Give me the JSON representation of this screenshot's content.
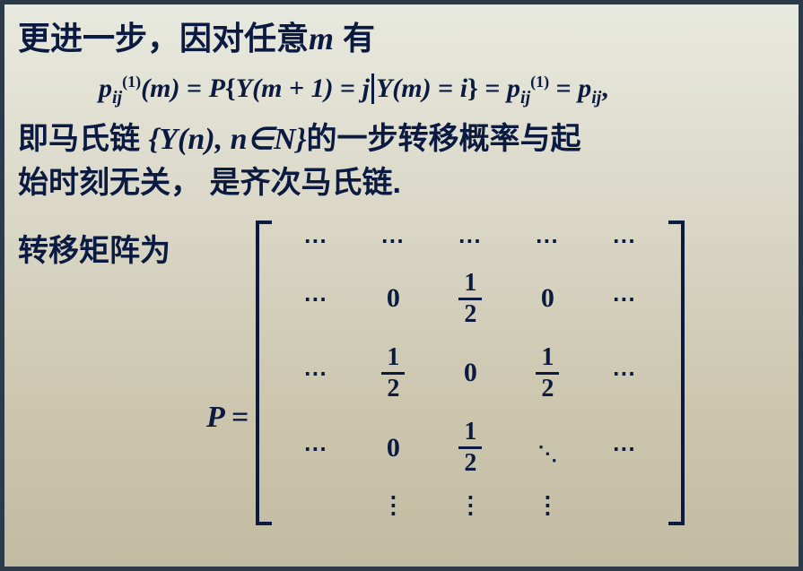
{
  "line1_a": "更进一步，因对任意",
  "line1_m": "m",
  "line1_b": "有",
  "eq": {
    "p": "p",
    "ij": "ij",
    "one": "(1)",
    "m": "m",
    "P": "P",
    "Y": "Y",
    "mp1": "m + 1",
    "j": "j",
    "i": "i",
    "eq": "="
  },
  "line2_a": "即马氏链 ",
  "line2_set": "{Y(n), n∈N}",
  "line2_b": "的一步转移概率与起",
  "line3": "始时刻无关， 是齐次马氏链.",
  "matrix_label": "转移矩阵为",
  "Peq_P": "P",
  "Peq_eq": "=",
  "matrix": {
    "hdots": "⋯",
    "vdots": "⋮",
    "ddots": "⋱",
    "rows": [
      [
        "⋯",
        "⋯",
        "⋯",
        "⋯",
        "⋯"
      ],
      [
        "⋯",
        "0",
        "1/2",
        "0",
        "⋯"
      ],
      [
        "⋯",
        "1/2",
        "0",
        "1/2",
        "⋯"
      ],
      [
        "⋯",
        "0",
        "1/2",
        "DDOTS",
        "⋯"
      ],
      [
        "",
        "⋮",
        "⋮",
        "⋮",
        ""
      ]
    ]
  },
  "style": {
    "text_color": "#0a1a40",
    "bg_gradient": [
      "#e8e9df",
      "#d9d6c5",
      "#cdc7b0",
      "#c2bba2"
    ],
    "border_color": "#2d3a4a",
    "heading_fontsize": 36,
    "body_fontsize": 34,
    "eq_fontsize": 30,
    "matrix_cell_fontsize": 30,
    "font_chinese": "SimHei / Microsoft YaHei",
    "font_math": "Times New Roman"
  }
}
